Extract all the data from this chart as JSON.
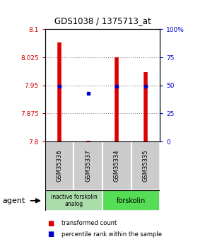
{
  "title": "GDS1038 / 1375713_at",
  "samples": [
    "GSM35336",
    "GSM35337",
    "GSM35334",
    "GSM35335"
  ],
  "transformed_counts": [
    8.065,
    7.802,
    8.025,
    7.985
  ],
  "percentile_ranks": [
    7.948,
    7.928,
    7.948,
    7.948
  ],
  "ylim": [
    7.8,
    8.1
  ],
  "y_ticks_left": [
    7.8,
    7.875,
    7.95,
    8.025,
    8.1
  ],
  "y_ticks_right": [
    0,
    25,
    50,
    75,
    100
  ],
  "ytick_labels_left": [
    "7.8",
    "7.875",
    "7.95",
    "8.025",
    "8.1"
  ],
  "ytick_labels_right": [
    "0",
    "25",
    "50",
    "75",
    "100%"
  ],
  "bar_color": "#dd0000",
  "dot_color": "#0000cc",
  "left_tick_color": "#cc0000",
  "right_tick_color": "#0000cc",
  "group0_color": "#aaddaa",
  "group1_color": "#55dd55",
  "group0_label": "inactive forskolin\nanalog",
  "group1_label": "forskolin",
  "agent_label": "agent",
  "legend_items": [
    {
      "color": "#dd0000",
      "label": "transformed count"
    },
    {
      "color": "#0000cc",
      "label": "percentile rank within the sample"
    }
  ],
  "bar_bottom": 7.8,
  "grid_color": "#888888",
  "sample_box_color": "#cccccc",
  "fig_bg": "#ffffff"
}
